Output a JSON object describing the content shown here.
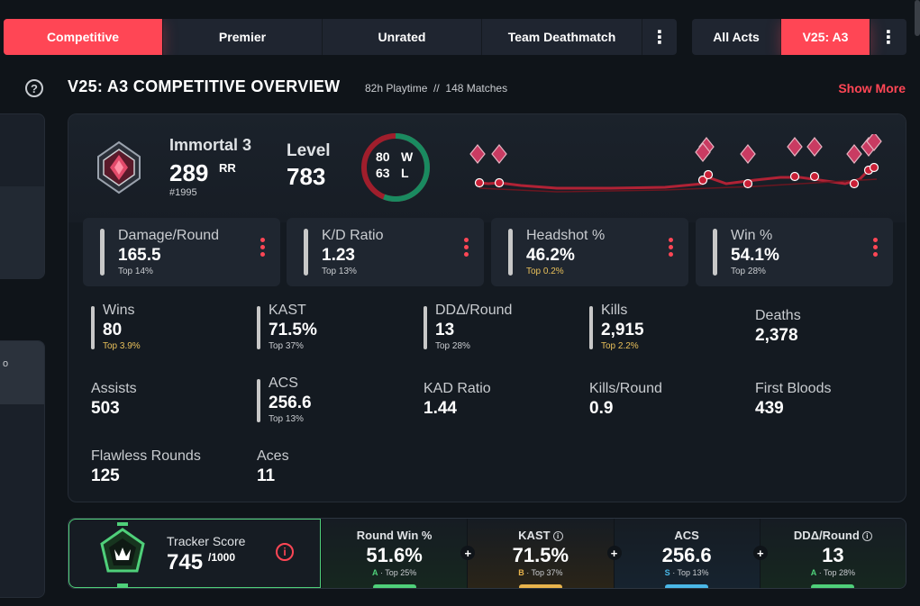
{
  "queue_tabs": [
    "Competitive",
    "Premier",
    "Unrated",
    "Team Deathmatch"
  ],
  "act_tabs": [
    "All Acts",
    "V25: A3"
  ],
  "overview": {
    "title": "V25: A3 COMPETITIVE OVERVIEW",
    "playtime": "82h Playtime",
    "separator": "//",
    "matches": "148 Matches",
    "show_more": "Show More"
  },
  "rank": {
    "name": "Immortal 3",
    "rr": "289",
    "rr_unit": "RR",
    "leaderboard": "#1995"
  },
  "level": {
    "label": "Level",
    "value": "783"
  },
  "record": {
    "wins": "80",
    "w": "W",
    "losses": "63",
    "l": "L",
    "win_fraction": 0.559
  },
  "main_stats": [
    {
      "label": "Damage/Round",
      "value": "165.5",
      "top": "Top 14%",
      "gold": false
    },
    {
      "label": "K/D Ratio",
      "value": "1.23",
      "top": "Top 13%",
      "gold": false
    },
    {
      "label": "Headshot %",
      "value": "46.2%",
      "top": "Top 0.2%",
      "gold": true
    },
    {
      "label": "Win %",
      "value": "54.1%",
      "top": "Top 28%",
      "gold": false
    }
  ],
  "stats": {
    "wins": {
      "label": "Wins",
      "value": "80",
      "top": "Top 3.9%"
    },
    "kast": {
      "label": "KAST",
      "value": "71.5%",
      "top": "Top 37%"
    },
    "ddr": {
      "label": "DDΔ/Round",
      "value": "13",
      "top": "Top 28%"
    },
    "kills": {
      "label": "Kills",
      "value": "2,915",
      "top": "Top 2.2%"
    },
    "deaths": {
      "label": "Deaths",
      "value": "2,378"
    },
    "assists": {
      "label": "Assists",
      "value": "503"
    },
    "acs": {
      "label": "ACS",
      "value": "256.6",
      "top": "Top 13%"
    },
    "kad": {
      "label": "KAD Ratio",
      "value": "1.44"
    },
    "kpr": {
      "label": "Kills/Round",
      "value": "0.9"
    },
    "fb": {
      "label": "First Bloods",
      "value": "439"
    },
    "flawless": {
      "label": "Flawless Rounds",
      "value": "125"
    },
    "aces": {
      "label": "Aces",
      "value": "11"
    }
  },
  "tracker": {
    "label": "Tracker Score",
    "value": "745",
    "max": "/1000",
    "segments": [
      {
        "label": "Round Win %",
        "value": "51.6%",
        "grade": "A",
        "top": "Top 25%",
        "grade_color": "#4fd07a",
        "bg": "#16271f",
        "info": false
      },
      {
        "label": "KAST",
        "value": "71.5%",
        "grade": "B",
        "top": "Top 37%",
        "grade_color": "#e9b44c",
        "bg": "#2a2418",
        "info": true
      },
      {
        "label": "ACS",
        "value": "256.6",
        "grade": "S",
        "top": "Top 13%",
        "grade_color": "#4ab8e8",
        "bg": "#16232f",
        "info": false
      },
      {
        "label": "DDΔ/Round",
        "value": "13",
        "grade": "A",
        "top": "Top 28%",
        "grade_color": "#4fd07a",
        "bg": "#16271f",
        "info": true
      }
    ]
  },
  "colors": {
    "accent": "#ff4655",
    "win": "#1a8a60",
    "loss": "#a01e2c",
    "gold": "#e9c05a"
  }
}
